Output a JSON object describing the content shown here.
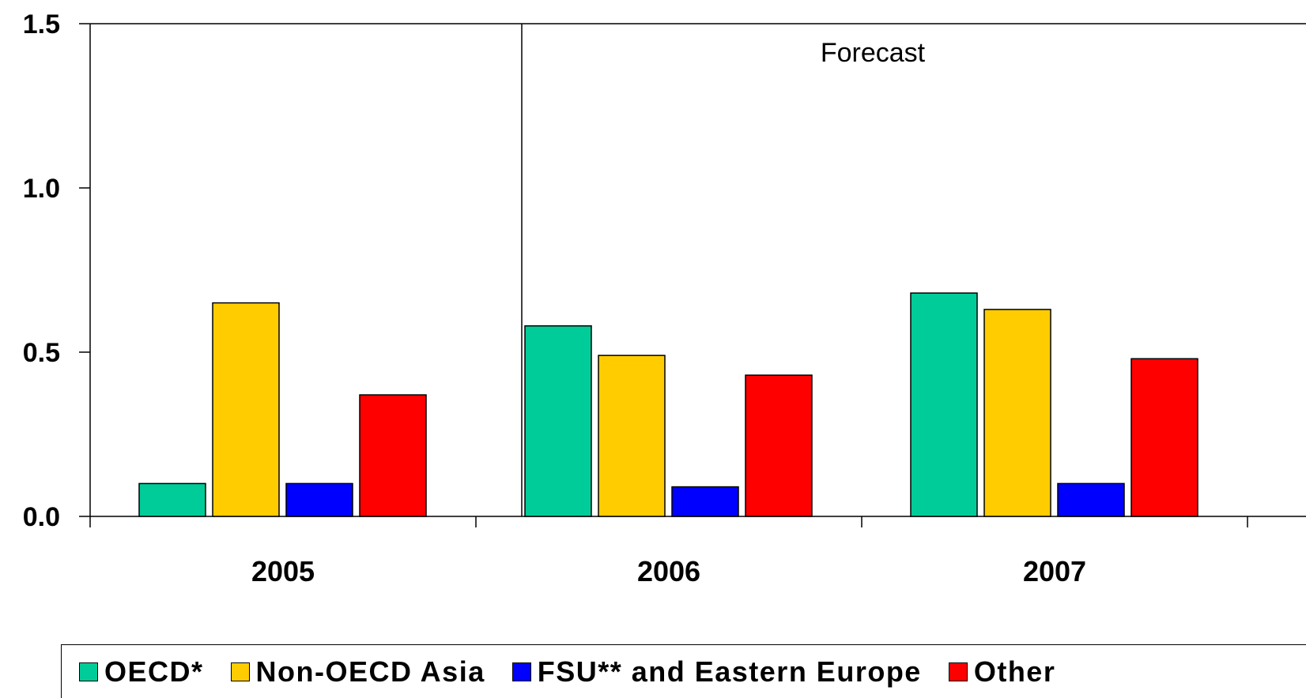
{
  "chart_data": {
    "type": "bar",
    "categories": [
      "2005",
      "2006",
      "2007"
    ],
    "series": [
      {
        "name": "OECD*",
        "color": "#00CC99",
        "values": [
          0.1,
          0.58,
          0.68
        ]
      },
      {
        "name": "Non-OECD Asia",
        "color": "#FFCC00",
        "values": [
          0.65,
          0.49,
          0.63
        ]
      },
      {
        "name": "FSU** and Eastern Europe",
        "color": "#0000FF",
        "values": [
          0.1,
          0.09,
          0.1
        ]
      },
      {
        "name": "Other",
        "color": "#FF0000",
        "values": [
          0.37,
          0.43,
          0.48
        ]
      }
    ],
    "ylim": [
      0,
      1.5
    ],
    "yticks": [
      "0.0",
      "0.5",
      "1.0",
      "1.5"
    ],
    "annotations": {
      "forecast": "Forecast"
    },
    "legend_position": "bottom",
    "grid": false
  }
}
